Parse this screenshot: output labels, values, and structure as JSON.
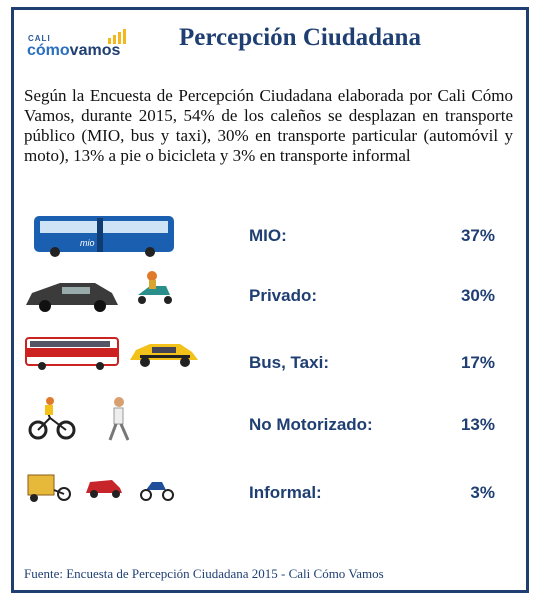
{
  "header": {
    "logo": {
      "top": "CALI",
      "first": "cómo",
      "second": "vamos"
    },
    "title": "Percepción Ciudadana"
  },
  "intro": "Según la Encuesta de Percepción Ciudadana elaborada por Cali Cómo Vamos, durante 2015, 54% de los caleños se desplazan en transporte público (MIO, bus y taxi), 30% en transporte particular (automóvil y moto), 13% a pie o bicicleta y 3% en transporte informal",
  "rows": [
    {
      "label": "MIO:",
      "value": "37%"
    },
    {
      "label": "Privado:",
      "value": "30%"
    },
    {
      "label": "Bus, Taxi:",
      "value": "17%"
    },
    {
      "label": "No Motorizado:",
      "value": "13%"
    },
    {
      "label": "Informal:",
      "value": "3%"
    }
  ],
  "source": "Fuente: Encuesta de Percepción Ciudadana 2015 -  Cali Cómo  Vamos"
}
